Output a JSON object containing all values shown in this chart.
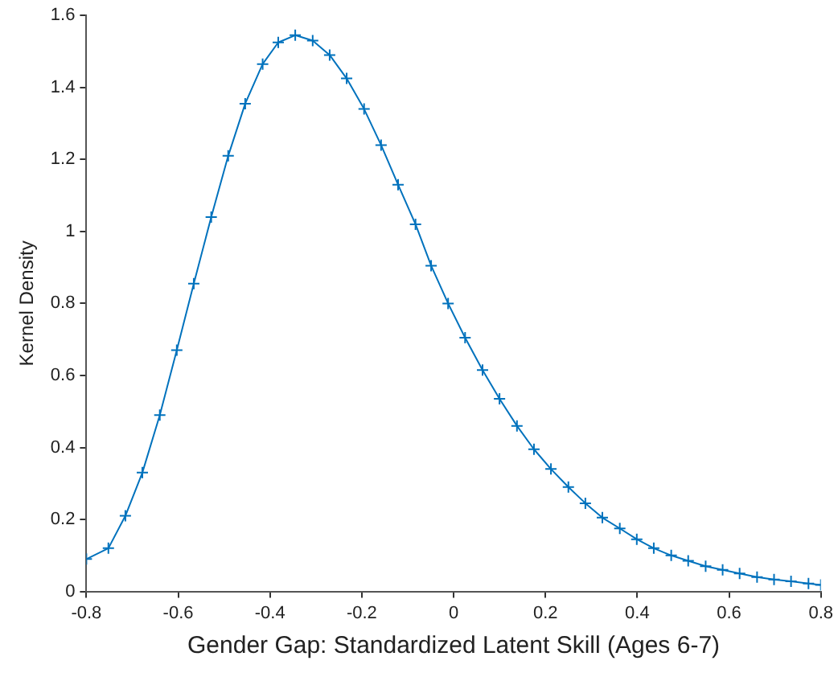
{
  "chart_data": {
    "type": "line",
    "xlabel": "Gender Gap: Standardized Latent Skill (Ages 6-7)",
    "ylabel": "Kernel Density",
    "x": [
      -0.8,
      -0.752,
      -0.715,
      -0.678,
      -0.64,
      -0.603,
      -0.566,
      -0.528,
      -0.491,
      -0.454,
      -0.416,
      -0.382,
      -0.345,
      -0.307,
      -0.27,
      -0.233,
      -0.195,
      -0.158,
      -0.121,
      -0.083,
      -0.049,
      -0.012,
      0.025,
      0.063,
      0.1,
      0.138,
      0.175,
      0.212,
      0.25,
      0.287,
      0.324,
      0.362,
      0.399,
      0.436,
      0.474,
      0.511,
      0.549,
      0.586,
      0.623,
      0.661,
      0.698,
      0.735,
      0.773,
      0.8
    ],
    "series": [
      {
        "color": "#0072bd",
        "values": [
          0.09,
          0.12,
          0.21,
          0.33,
          0.49,
          0.67,
          0.855,
          1.04,
          1.21,
          1.355,
          1.465,
          1.525,
          1.545,
          1.53,
          1.49,
          1.425,
          1.34,
          1.24,
          1.13,
          1.02,
          0.905,
          0.8,
          0.705,
          0.615,
          0.535,
          0.46,
          0.395,
          0.34,
          0.29,
          0.245,
          0.205,
          0.175,
          0.145,
          0.12,
          0.1,
          0.085,
          0.07,
          0.06,
          0.05,
          0.04,
          0.033,
          0.028,
          0.022,
          0.018
        ]
      }
    ],
    "xlim": [
      -0.8,
      0.8
    ],
    "xticks": [
      -0.8,
      -0.6,
      -0.4,
      -0.2,
      0,
      0.2,
      0.4,
      0.6,
      0.8
    ],
    "ylim": [
      0,
      1.6
    ],
    "yticks": [
      0,
      0.2,
      0.4,
      0.6,
      0.8,
      1,
      1.2,
      1.4,
      1.6
    ],
    "grid": false,
    "legend": false,
    "marker": "cross",
    "line_style": "solid"
  }
}
